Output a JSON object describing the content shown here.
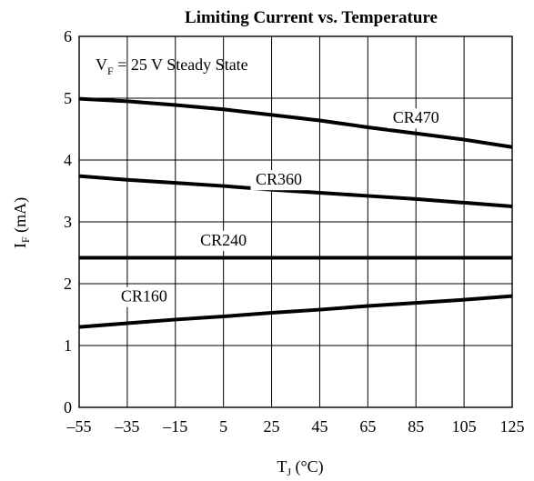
{
  "chart_data": {
    "type": "line",
    "title": "Limiting Current vs. Temperature",
    "xlabel": {
      "main": "T",
      "sub": "J",
      "rest": " (°C)"
    },
    "ylabel": {
      "main": "I",
      "sub": "F",
      "rest": " (mA)"
    },
    "annotation": {
      "main": "V",
      "sub": "F",
      "rest": " = 25 V Steady State"
    },
    "xlim": [
      -55,
      125
    ],
    "ylim": [
      0,
      6
    ],
    "x_ticks": [
      -55,
      -35,
      -15,
      5,
      25,
      45,
      65,
      85,
      105,
      125
    ],
    "x_tick_labels": [
      "–55",
      "–35",
      "–15",
      "5",
      "25",
      "45",
      "65",
      "85",
      "105",
      "125"
    ],
    "y_ticks": [
      0,
      1,
      2,
      3,
      4,
      5,
      6
    ],
    "y_tick_labels": [
      "0",
      "1",
      "2",
      "3",
      "4",
      "5",
      "6"
    ],
    "grid": true,
    "line_color": "#000000",
    "series": [
      {
        "name": "CR470",
        "x": [
          -55,
          -35,
          -15,
          5,
          25,
          45,
          65,
          85,
          105,
          125
        ],
        "y": [
          4.99,
          4.95,
          4.89,
          4.82,
          4.73,
          4.64,
          4.53,
          4.43,
          4.33,
          4.21
        ]
      },
      {
        "name": "CR360",
        "x": [
          -55,
          -35,
          -15,
          5,
          25,
          45,
          65,
          85,
          105,
          125
        ],
        "y": [
          3.74,
          3.68,
          3.63,
          3.58,
          3.52,
          3.47,
          3.42,
          3.37,
          3.31,
          3.25
        ]
      },
      {
        "name": "CR240",
        "x": [
          -55,
          -35,
          -15,
          5,
          25,
          45,
          65,
          85,
          105,
          125
        ],
        "y": [
          2.42,
          2.42,
          2.42,
          2.42,
          2.42,
          2.42,
          2.42,
          2.42,
          2.42,
          2.42
        ]
      },
      {
        "name": "CR160",
        "x": [
          -55,
          -35,
          -15,
          5,
          25,
          45,
          65,
          85,
          105,
          125
        ],
        "y": [
          1.3,
          1.36,
          1.42,
          1.47,
          1.53,
          1.58,
          1.64,
          1.69,
          1.74,
          1.8
        ]
      }
    ]
  }
}
